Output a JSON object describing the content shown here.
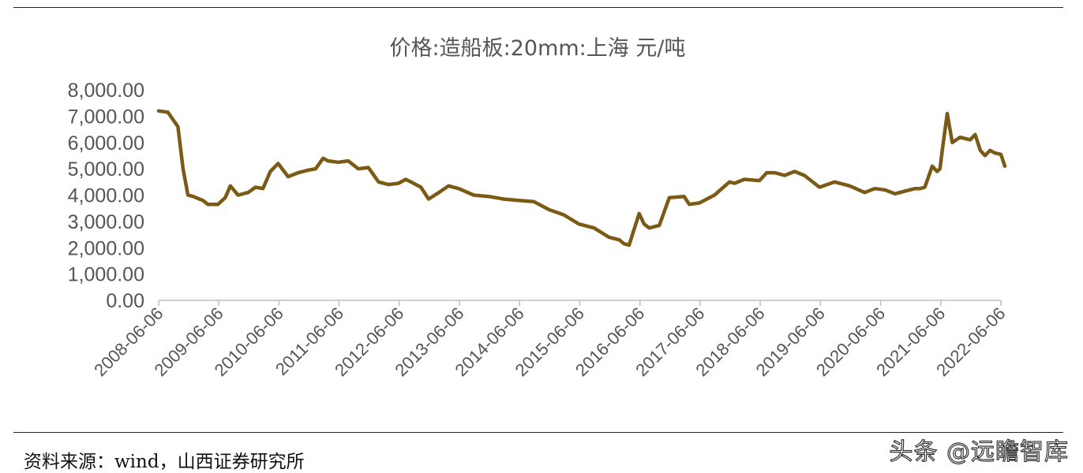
{
  "chart_data": {
    "type": "line",
    "title": "价格:造船板:20mm:上海 元/吨",
    "xlabel": "",
    "ylabel": "",
    "ylim": [
      0,
      8000
    ],
    "y_ticks": [
      "0.00",
      "1,000.00",
      "2,000.00",
      "3,000.00",
      "4,000.00",
      "5,000.00",
      "6,000.00",
      "7,000.00",
      "8,000.00"
    ],
    "x_ticks": [
      "2008-06-06",
      "2009-06-06",
      "2010-06-06",
      "2011-06-06",
      "2012-06-06",
      "2013-06-06",
      "2014-06-06",
      "2015-06-06",
      "2016-06-06",
      "2017-06-06",
      "2018-06-06",
      "2019-06-06",
      "2020-06-06",
      "2021-06-06",
      "2022-06-06"
    ],
    "grid": false,
    "line_color": "#7a5a14",
    "series": [
      {
        "x": [
          "2008-06-06",
          "2008-08-01",
          "2008-10-01",
          "2008-11-01",
          "2008-12-01",
          "2009-01-01",
          "2009-03-01",
          "2009-04-01",
          "2009-06-01",
          "2009-07-15",
          "2009-08-15",
          "2009-10-01",
          "2009-12-01",
          "2010-01-15",
          "2010-03-01",
          "2010-04-15",
          "2010-06-01",
          "2010-08-01",
          "2010-10-01",
          "2010-12-01",
          "2011-01-15",
          "2011-03-01",
          "2011-04-01",
          "2011-06-01",
          "2011-08-01",
          "2011-10-01",
          "2011-12-01",
          "2012-02-01",
          "2012-04-01",
          "2012-06-01",
          "2012-07-15",
          "2012-09-01",
          "2012-10-15",
          "2012-12-01",
          "2013-02-01",
          "2013-04-01",
          "2013-06-01",
          "2013-09-01",
          "2013-12-01",
          "2014-03-01",
          "2014-06-01",
          "2014-09-01",
          "2014-12-01",
          "2015-03-01",
          "2015-06-01",
          "2015-09-01",
          "2015-12-01",
          "2016-01-01",
          "2016-02-01",
          "2016-03-01",
          "2016-04-01",
          "2016-05-01",
          "2016-06-01",
          "2016-07-01",
          "2016-08-01",
          "2016-10-01",
          "2016-12-01",
          "2017-03-01",
          "2017-04-01",
          "2017-06-01",
          "2017-09-01",
          "2017-12-01",
          "2018-01-01",
          "2018-03-01",
          "2018-06-01",
          "2018-07-15",
          "2018-09-01",
          "2018-11-01",
          "2019-01-01",
          "2019-03-01",
          "2019-06-01",
          "2019-09-01",
          "2019-12-01",
          "2020-03-01",
          "2020-05-01",
          "2020-07-01",
          "2020-09-01",
          "2020-12-01",
          "2021-01-01",
          "2021-02-01",
          "2021-03-01",
          "2021-04-15",
          "2021-05-15",
          "2021-06-01",
          "2021-06-15",
          "2021-07-15",
          "2021-08-15",
          "2021-10-01",
          "2021-12-01",
          "2022-01-01",
          "2022-02-01",
          "2022-03-01",
          "2022-04-01",
          "2022-05-01",
          "2022-06-06",
          "2022-06-30"
        ],
        "values": [
          7200,
          7150,
          6600,
          5000,
          4000,
          3950,
          3800,
          3650,
          3650,
          3900,
          4350,
          4000,
          4100,
          4300,
          4250,
          4900,
          5200,
          4700,
          4850,
          4950,
          5000,
          5400,
          5300,
          5250,
          5300,
          5000,
          5050,
          4500,
          4400,
          4450,
          4600,
          4450,
          4300,
          3850,
          4100,
          4350,
          4250,
          4000,
          3950,
          3850,
          3800,
          3750,
          3450,
          3250,
          2900,
          2750,
          2400,
          2350,
          2300,
          2150,
          2100,
          2700,
          3300,
          2900,
          2750,
          2850,
          3900,
          3950,
          3650,
          3700,
          4000,
          4500,
          4450,
          4600,
          4550,
          4850,
          4850,
          4750,
          4900,
          4750,
          4300,
          4500,
          4350,
          4100,
          4250,
          4200,
          4050,
          4200,
          4250,
          4250,
          4300,
          5100,
          4900,
          5000,
          5700,
          7100,
          6000,
          6200,
          6100,
          6300,
          5700,
          5500,
          5700,
          5600,
          5550,
          5100
        ]
      }
    ]
  },
  "footer": {
    "source": "资料来源：wind，山西证券研究所",
    "watermark": "头条 @远瞻智库"
  }
}
